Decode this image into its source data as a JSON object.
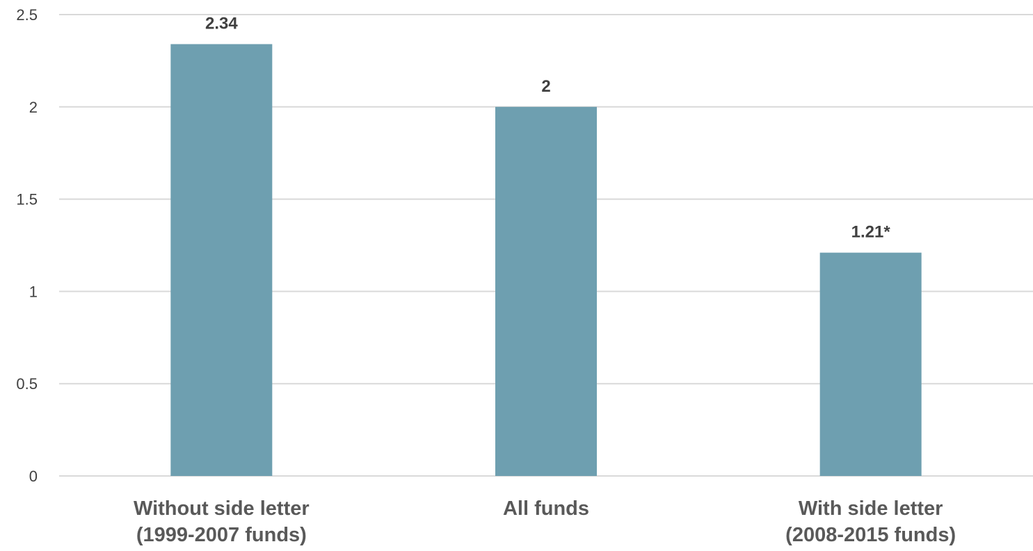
{
  "chart_data": {
    "type": "bar",
    "categories": [
      [
        "Without side letter",
        "(1999-2007 funds)"
      ],
      [
        "All funds"
      ],
      [
        "With side letter",
        "(2008-2015 funds)"
      ]
    ],
    "values": [
      2.34,
      2,
      1.21
    ],
    "data_labels": [
      "2.34",
      "2",
      "1.21*"
    ],
    "yticks": [
      0,
      0.5,
      1,
      1.5,
      2,
      2.5
    ],
    "ytick_labels": [
      "0",
      "0.5",
      "1",
      "1.5",
      "2",
      "2.5"
    ],
    "ylim": [
      0,
      2.5
    ],
    "title": "",
    "xlabel": "",
    "ylabel": "",
    "grid": true,
    "legend": "none",
    "colors": {
      "bar": "#6e9fb0",
      "grid": "#d9d9d9",
      "tick_text": "#404040",
      "category_text": "#595959"
    }
  }
}
